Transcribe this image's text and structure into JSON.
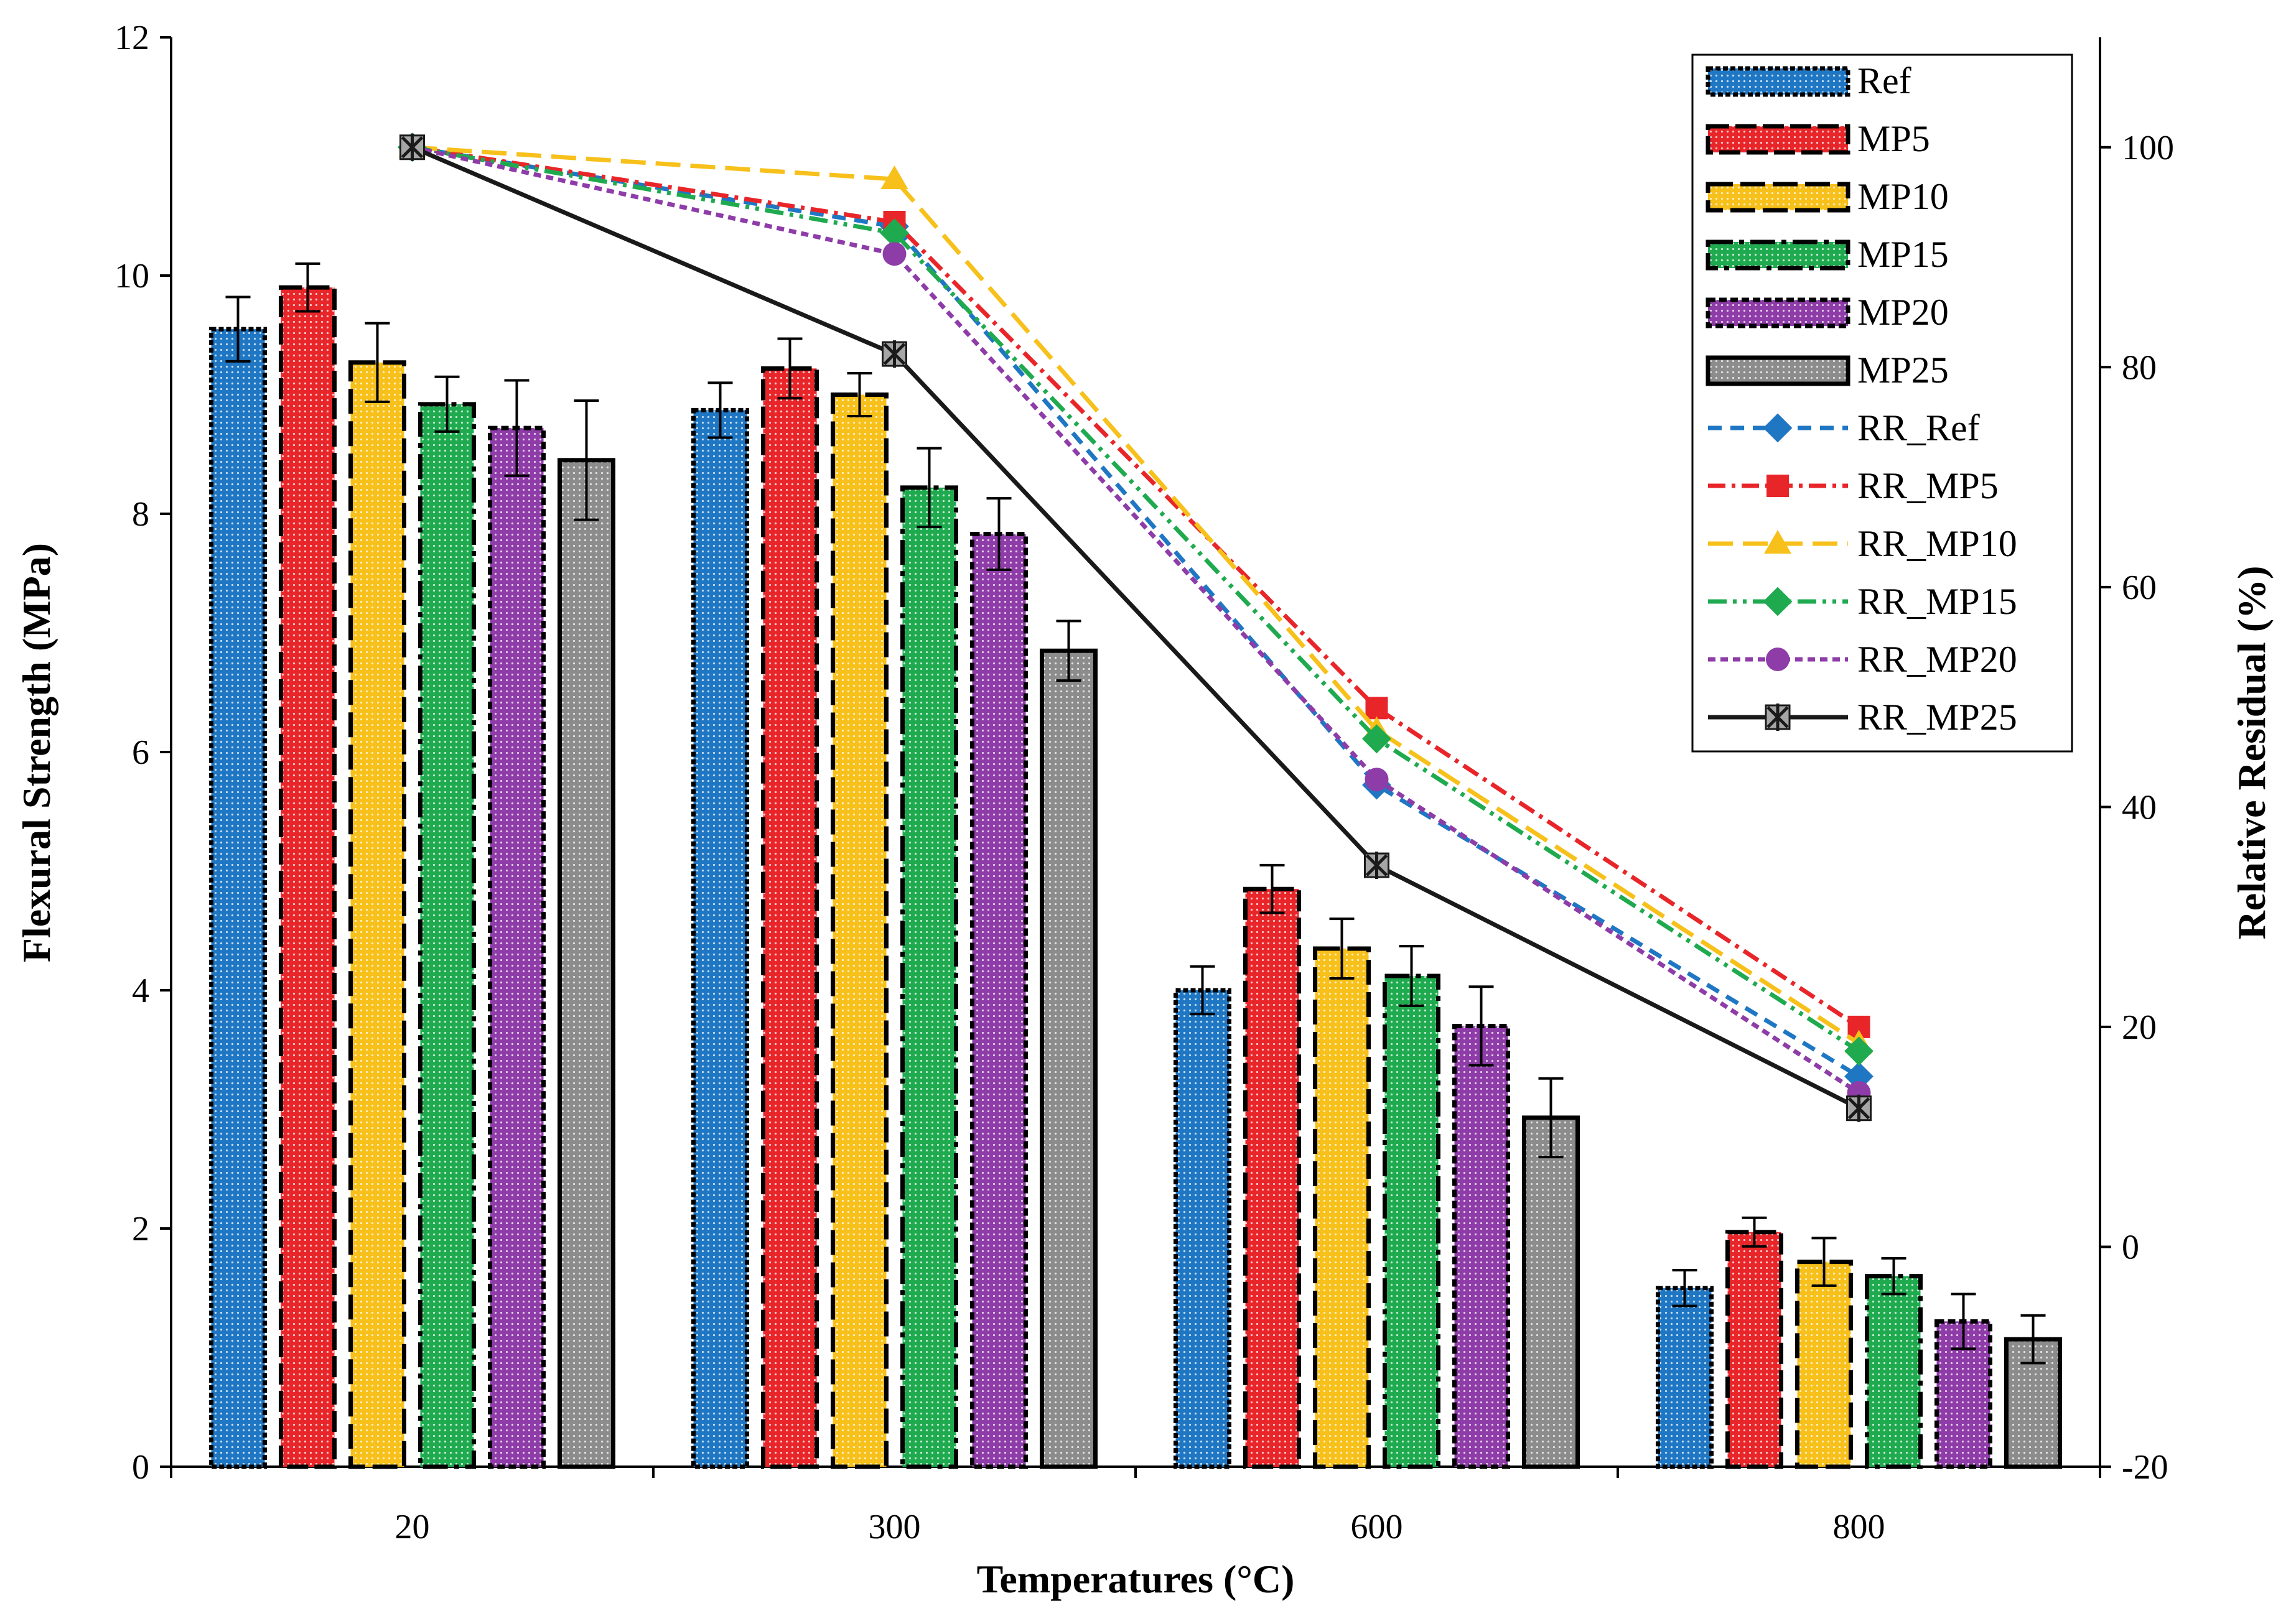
{
  "chart_data": {
    "type": "bar+line",
    "categories": [
      "20",
      "300",
      "600",
      "800"
    ],
    "xlabel": "Temperatures (°C)",
    "ylabel": "Flexural Strength (MPa)",
    "y2label": "Relative Residual (%)",
    "ylim": [
      0,
      12
    ],
    "yticks": [
      "0",
      "2",
      "4",
      "6",
      "8",
      "10",
      "12"
    ],
    "y2lim": [
      -20,
      110
    ],
    "y2ticks": [
      "-20",
      "0",
      "20",
      "40",
      "60",
      "80",
      "100"
    ],
    "legend_position": "top-right",
    "bar_series": [
      {
        "name": "Ref",
        "color": "#1f77c4",
        "values": [
          9.55,
          8.87,
          4.0,
          1.5
        ],
        "errors": [
          0.27,
          0.23,
          0.2,
          0.15
        ]
      },
      {
        "name": "MP5",
        "color": "#e8262a",
        "values": [
          9.9,
          9.22,
          4.85,
          1.97
        ],
        "errors": [
          0.2,
          0.25,
          0.2,
          0.12
        ]
      },
      {
        "name": "MP10",
        "color": "#f7c01a",
        "values": [
          9.27,
          9.0,
          4.35,
          1.72
        ],
        "errors": [
          0.33,
          0.18,
          0.25,
          0.2
        ]
      },
      {
        "name": "MP15",
        "color": "#1faa4f",
        "values": [
          8.92,
          8.22,
          4.12,
          1.6
        ],
        "errors": [
          0.23,
          0.33,
          0.25,
          0.15
        ]
      },
      {
        "name": "MP20",
        "color": "#8e3ca8",
        "values": [
          8.72,
          7.83,
          3.7,
          1.22
        ],
        "errors": [
          0.4,
          0.3,
          0.33,
          0.23
        ]
      },
      {
        "name": "MP25",
        "color": "#8c8c8c",
        "values": [
          8.45,
          6.85,
          2.93,
          1.07
        ],
        "errors": [
          0.5,
          0.25,
          0.33,
          0.2
        ]
      }
    ],
    "line_series": [
      {
        "name": "RR_Ref",
        "color": "#1f77c4",
        "dash": "22 14",
        "marker": "diamond",
        "values": [
          100,
          92.8,
          42,
          15.5
        ]
      },
      {
        "name": "RR_MP5",
        "color": "#e8262a",
        "dash": "28 10 6 10",
        "marker": "square",
        "values": [
          100,
          93.2,
          49,
          20
        ]
      },
      {
        "name": "RR_MP10",
        "color": "#f7c01a",
        "dash": "40 16",
        "marker": "triangle",
        "values": [
          100,
          97.1,
          47,
          18.5
        ]
      },
      {
        "name": "RR_MP15",
        "color": "#1faa4f",
        "dash": "30 10 6 10 6 10",
        "marker": "diamond",
        "values": [
          100,
          92.2,
          46.2,
          17.8
        ]
      },
      {
        "name": "RR_MP20",
        "color": "#8e3ca8",
        "dash": "12 8",
        "marker": "circle",
        "values": [
          100,
          90.3,
          42.5,
          14
        ]
      },
      {
        "name": "RR_MP25",
        "color": "#1a1a1a",
        "dash": "",
        "marker": "star",
        "values": [
          100,
          81.2,
          34.7,
          12.6
        ]
      }
    ]
  }
}
